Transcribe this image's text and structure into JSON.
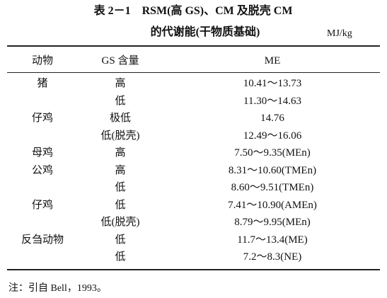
{
  "title": {
    "line1": "表 2－1　RSM(高 GS)、CM 及脱壳 CM",
    "line2": "的代谢能(干物质基础)",
    "unit": "MJ/kg"
  },
  "table": {
    "headers": [
      "动物",
      "GS 含量",
      "ME"
    ],
    "rows": [
      {
        "animal": "猪",
        "gs": "高",
        "me": "10.41～13.73"
      },
      {
        "gs": "低",
        "me": "11.30～14.63"
      },
      {
        "animal": "仔鸡",
        "gs": "极低",
        "me": "14.76"
      },
      {
        "gs": "低(脱壳)",
        "me": "12.49～16.06"
      },
      {
        "animal": "母鸡",
        "gs": "高",
        "me": "7.50～9.35(MEn)"
      },
      {
        "animal": "公鸡",
        "gs": "高",
        "me": "8.31～10.60(TMEn)"
      },
      {
        "gs": "低",
        "me": "8.60～9.51(TMEn)"
      },
      {
        "animal": "仔鸡",
        "gs": "低",
        "me": "7.41～10.90(AMEn)"
      },
      {
        "gs": "低(脱壳)",
        "me": "8.79～9.95(MEn)"
      },
      {
        "animal": "反刍动物",
        "gs": "低",
        "me": "11.7～13.4(ME)"
      },
      {
        "gs": "低",
        "me": "7.2～8.3(NE)"
      }
    ]
  },
  "note": "注：引自 Bell，1993。"
}
